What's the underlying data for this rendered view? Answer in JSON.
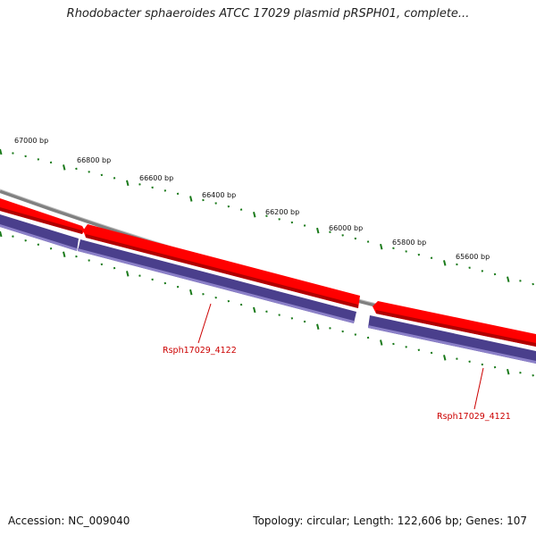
{
  "title": "Rhodobacter sphaeroides ATCC 17029 plasmid pRSPH01, complete...",
  "footer": {
    "accession": "Accession: NC_009040",
    "stats": "Topology: circular; Length: 122,606 bp; Genes: 107"
  },
  "ruler": {
    "unit": "bp",
    "labels": [
      "67000 bp",
      "66800 bp",
      "66600 bp",
      "66400 bp",
      "66200 bp",
      "66000 bp",
      "65800 bp",
      "65600 bp"
    ]
  },
  "genes": [
    {
      "locus_tag": "Rsph17029_4122"
    },
    {
      "locus_tag": "Rsph17029_4121"
    }
  ],
  "colors": {
    "backbone": "#808080",
    "cds_forward": "#ff0000",
    "cds_forward_dark": "#b00000",
    "gene_reverse": "#4a3f8c",
    "gene_reverse_light": "#8b80c8",
    "tick": "#1a7a1a",
    "label": "#cc0000"
  }
}
